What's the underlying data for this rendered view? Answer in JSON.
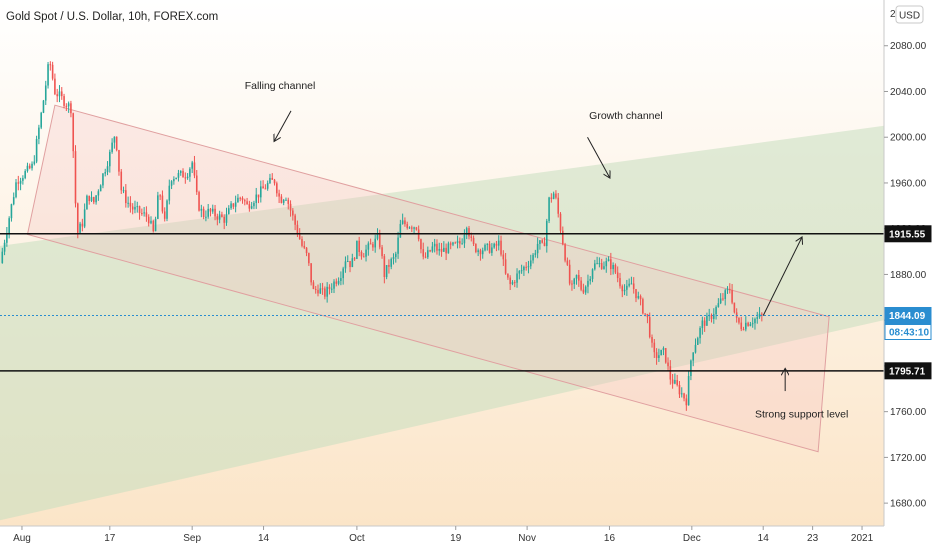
{
  "chart_data": {
    "type": "candlestick",
    "title": "Gold Spot / U.S. Dollar, 10h, FOREX.com",
    "currency_button": "USD",
    "y_ticks": [
      1680,
      1720,
      1760,
      1800,
      1840,
      1880,
      1920,
      1960,
      2000,
      2040,
      2080
    ],
    "y_tick_labels": [
      "1680.00",
      "1720.00",
      "1760.00",
      "1800.00",
      "1840.00",
      "1880.00",
      "1920.00",
      "1960.00",
      "2000.00",
      "2040.00",
      "2080.00"
    ],
    "y_top_label": "2",
    "ylim": [
      1660,
      2120
    ],
    "x_ticks": [
      {
        "label": "Aug",
        "date": "2020-08-01"
      },
      {
        "label": "17",
        "date": "2020-08-17"
      },
      {
        "label": "Sep",
        "date": "2020-09-01"
      },
      {
        "label": "14",
        "date": "2020-09-14"
      },
      {
        "label": "Oct",
        "date": "2020-10-01"
      },
      {
        "label": "19",
        "date": "2020-10-19"
      },
      {
        "label": "Nov",
        "date": "2020-11-01"
      },
      {
        "label": "16",
        "date": "2020-11-16"
      },
      {
        "label": "Dec",
        "date": "2020-12-01"
      },
      {
        "label": "14",
        "date": "2020-12-14"
      },
      {
        "label": "23",
        "date": "2020-12-23"
      },
      {
        "label": "2021",
        "date": "2021-01-01"
      }
    ],
    "xlim": [
      "2020-07-28",
      "2021-01-05"
    ],
    "horizontal_levels": [
      {
        "value": 1915.55,
        "label": "1915.55"
      },
      {
        "value": 1795.71,
        "label": "1795.71"
      }
    ],
    "current_price": {
      "value": 1844.09,
      "label": "1844.09",
      "countdown": "08:43:10"
    },
    "falling_channel": {
      "upper": [
        [
          "2020-08-07",
          2028
        ],
        [
          "2020-12-26",
          1843
        ]
      ],
      "lower": [
        [
          "2020-08-02",
          1915
        ],
        [
          "2020-12-24",
          1725
        ]
      ]
    },
    "growth_channel": {
      "upper": [
        [
          "2020-07-28",
          1905
        ],
        [
          "2021-01-05",
          2010
        ]
      ],
      "lower": [
        [
          "2020-07-28",
          1665
        ],
        [
          "2021-01-05",
          1840
        ]
      ]
    },
    "annotations": [
      {
        "text": "Falling channel",
        "at": [
          "2020-09-17",
          2042
        ]
      },
      {
        "text": "Growth channel",
        "at": [
          "2020-11-19",
          2016
        ]
      },
      {
        "text": "Strong support level",
        "at": [
          "2020-12-21",
          1755
        ]
      }
    ],
    "arrows": [
      {
        "name": "falling-channel-arrow",
        "from": [
          "2020-09-19",
          2023
        ],
        "to": [
          "2020-09-16",
          1997
        ]
      },
      {
        "name": "growth-channel-arrow",
        "from": [
          "2020-11-12",
          2000
        ],
        "to": [
          "2020-11-16",
          1965
        ]
      },
      {
        "name": "breakout-arrow",
        "from": [
          "2020-12-14",
          1844
        ],
        "to": [
          "2020-12-21",
          1912
        ]
      },
      {
        "name": "support-arrow",
        "from": [
          "2020-12-18",
          1778
        ],
        "to": [
          "2020-12-18",
          1797
        ]
      }
    ],
    "price_path": [
      [
        "2020-07-28",
        1890
      ],
      [
        "2020-07-31",
        1962
      ],
      [
        "2020-08-03",
        1975
      ],
      [
        "2020-08-05",
        2035
      ],
      [
        "2020-08-06",
        2068
      ],
      [
        "2020-08-07",
        2040
      ],
      [
        "2020-08-10",
        2025
      ],
      [
        "2020-08-11",
        1915
      ],
      [
        "2020-08-12",
        1925
      ],
      [
        "2020-08-13",
        1950
      ],
      [
        "2020-08-14",
        1942
      ],
      [
        "2020-08-17",
        1985
      ],
      [
        "2020-08-18",
        2005
      ],
      [
        "2020-08-19",
        1955
      ],
      [
        "2020-08-20",
        1945
      ],
      [
        "2020-08-21",
        1938
      ],
      [
        "2020-08-24",
        1930
      ],
      [
        "2020-08-25",
        1915
      ],
      [
        "2020-08-26",
        1955
      ],
      [
        "2020-08-27",
        1925
      ],
      [
        "2020-08-28",
        1965
      ],
      [
        "2020-08-31",
        1968
      ],
      [
        "2020-09-01",
        1978
      ],
      [
        "2020-09-02",
        1942
      ],
      [
        "2020-09-03",
        1932
      ],
      [
        "2020-09-04",
        1935
      ],
      [
        "2020-09-07",
        1928
      ],
      [
        "2020-09-08",
        1938
      ],
      [
        "2020-09-09",
        1945
      ],
      [
        "2020-09-10",
        1948
      ],
      [
        "2020-09-11",
        1940
      ],
      [
        "2020-09-14",
        1955
      ],
      [
        "2020-09-15",
        1960
      ],
      [
        "2020-09-16",
        1962
      ],
      [
        "2020-09-17",
        1945
      ],
      [
        "2020-09-18",
        1950
      ],
      [
        "2020-09-21",
        1905
      ],
      [
        "2020-09-22",
        1895
      ],
      [
        "2020-09-23",
        1865
      ],
      [
        "2020-09-24",
        1868
      ],
      [
        "2020-09-25",
        1862
      ],
      [
        "2020-09-28",
        1880
      ],
      [
        "2020-09-29",
        1895
      ],
      [
        "2020-09-30",
        1888
      ],
      [
        "2020-10-01",
        1905
      ],
      [
        "2020-10-02",
        1898
      ],
      [
        "2020-10-05",
        1912
      ],
      [
        "2020-10-06",
        1880
      ],
      [
        "2020-10-07",
        1890
      ],
      [
        "2020-10-08",
        1895
      ],
      [
        "2020-10-09",
        1925
      ],
      [
        "2020-10-12",
        1922
      ],
      [
        "2020-10-13",
        1892
      ],
      [
        "2020-10-14",
        1898
      ],
      [
        "2020-10-15",
        1905
      ],
      [
        "2020-10-16",
        1900
      ],
      [
        "2020-10-19",
        1905
      ],
      [
        "2020-10-20",
        1908
      ],
      [
        "2020-10-21",
        1925
      ],
      [
        "2020-10-22",
        1905
      ],
      [
        "2020-10-23",
        1902
      ],
      [
        "2020-10-26",
        1903
      ],
      [
        "2020-10-27",
        1908
      ],
      [
        "2020-10-28",
        1880
      ],
      [
        "2020-10-29",
        1870
      ],
      [
        "2020-10-30",
        1878
      ],
      [
        "2020-11-02",
        1895
      ],
      [
        "2020-11-03",
        1908
      ],
      [
        "2020-11-04",
        1902
      ],
      [
        "2020-11-05",
        1945
      ],
      [
        "2020-11-06",
        1952
      ],
      [
        "2020-11-09",
        1865
      ],
      [
        "2020-11-10",
        1878
      ],
      [
        "2020-11-11",
        1866
      ],
      [
        "2020-11-12",
        1873
      ],
      [
        "2020-11-13",
        1888
      ],
      [
        "2020-11-16",
        1890
      ],
      [
        "2020-11-17",
        1883
      ],
      [
        "2020-11-18",
        1872
      ],
      [
        "2020-11-19",
        1865
      ],
      [
        "2020-11-20",
        1872
      ],
      [
        "2020-11-23",
        1840
      ],
      [
        "2020-11-24",
        1808
      ],
      [
        "2020-11-25",
        1810
      ],
      [
        "2020-11-26",
        1812
      ],
      [
        "2020-11-27",
        1790
      ],
      [
        "2020-11-30",
        1770
      ],
      [
        "2020-12-01",
        1812
      ],
      [
        "2020-12-02",
        1825
      ],
      [
        "2020-12-03",
        1838
      ],
      [
        "2020-12-04",
        1840
      ],
      [
        "2020-12-07",
        1862
      ],
      [
        "2020-12-08",
        1868
      ],
      [
        "2020-12-09",
        1840
      ],
      [
        "2020-12-10",
        1835
      ],
      [
        "2020-12-11",
        1838
      ],
      [
        "2020-12-14",
        1844
      ]
    ]
  }
}
